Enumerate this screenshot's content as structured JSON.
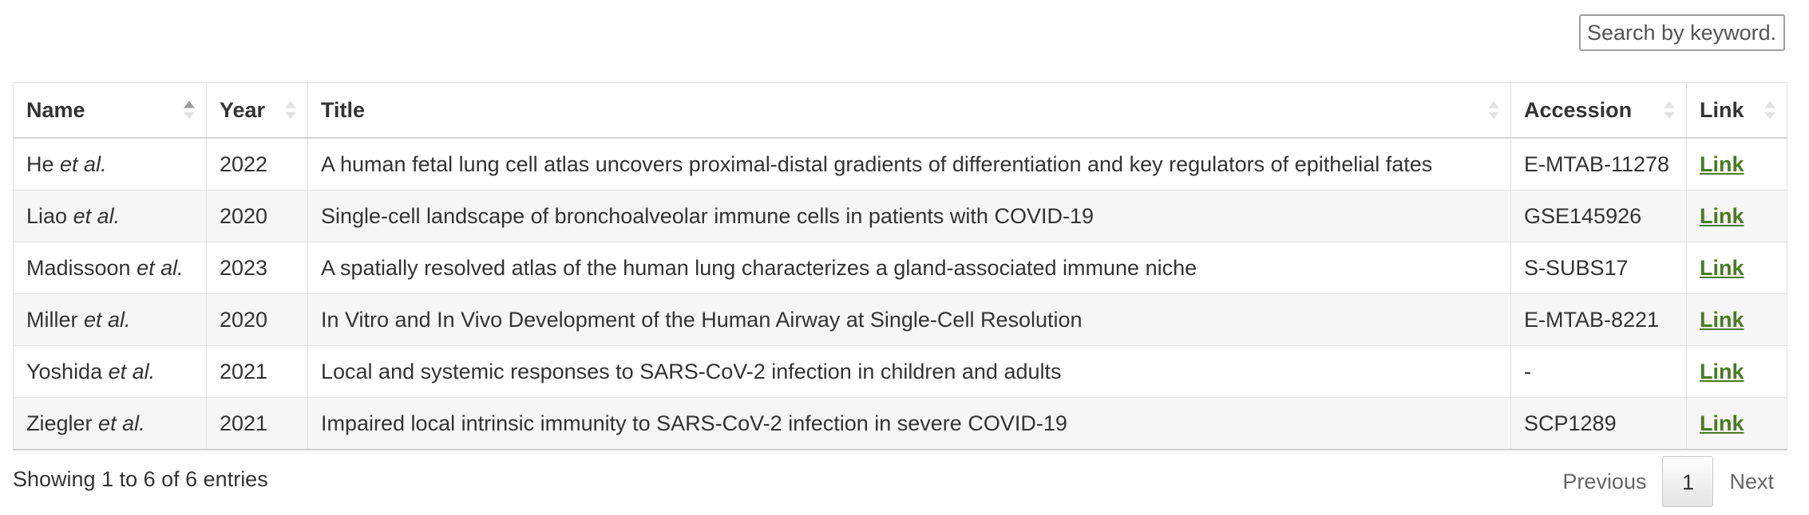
{
  "search": {
    "placeholder": "Search by keyword..."
  },
  "table": {
    "columns": [
      {
        "label": "Name",
        "sort": "asc"
      },
      {
        "label": "Year",
        "sort": "none"
      },
      {
        "label": "Title",
        "sort": "none"
      },
      {
        "label": "Accession",
        "sort": "none"
      },
      {
        "label": "Link",
        "sort": "none"
      }
    ],
    "rows": [
      {
        "name": "He",
        "etal": "et al.",
        "year": "2022",
        "title": "A human fetal lung cell atlas uncovers proximal-distal gradients of differentiation and key regulators of epithelial fates",
        "accession": "E-MTAB-11278",
        "link": "Link"
      },
      {
        "name": "Liao",
        "etal": "et al.",
        "year": "2020",
        "title": "Single-cell landscape of bronchoalveolar immune cells in patients with COVID-19",
        "accession": "GSE145926",
        "link": "Link"
      },
      {
        "name": "Madissoon",
        "etal": "et al.",
        "year": "2023",
        "title": "A spatially resolved atlas of the human lung characterizes a gland-associated immune niche",
        "accession": "S-SUBS17",
        "link": "Link"
      },
      {
        "name": "Miller",
        "etal": "et al.",
        "year": "2020",
        "title": "In Vitro and In Vivo Development of the Human Airway at Single-Cell Resolution",
        "accession": "E-MTAB-8221",
        "link": "Link"
      },
      {
        "name": "Yoshida",
        "etal": "et al.",
        "year": "2021",
        "title": "Local and systemic responses to SARS-CoV-2 infection in children and adults",
        "accession": "-",
        "link": "Link"
      },
      {
        "name": "Ziegler",
        "etal": "et al.",
        "year": "2021",
        "title": "Impaired local intrinsic immunity to SARS-CoV-2 infection in severe COVID-19",
        "accession": "SCP1289",
        "link": "Link"
      }
    ]
  },
  "footer": {
    "info": "Showing 1 to 6 of 6 entries",
    "previous": "Previous",
    "page": "1",
    "next": "Next"
  },
  "colors": {
    "link": "#4a7a23",
    "row_stripe": "#f6f6f6",
    "border": "#e2e2e2"
  }
}
